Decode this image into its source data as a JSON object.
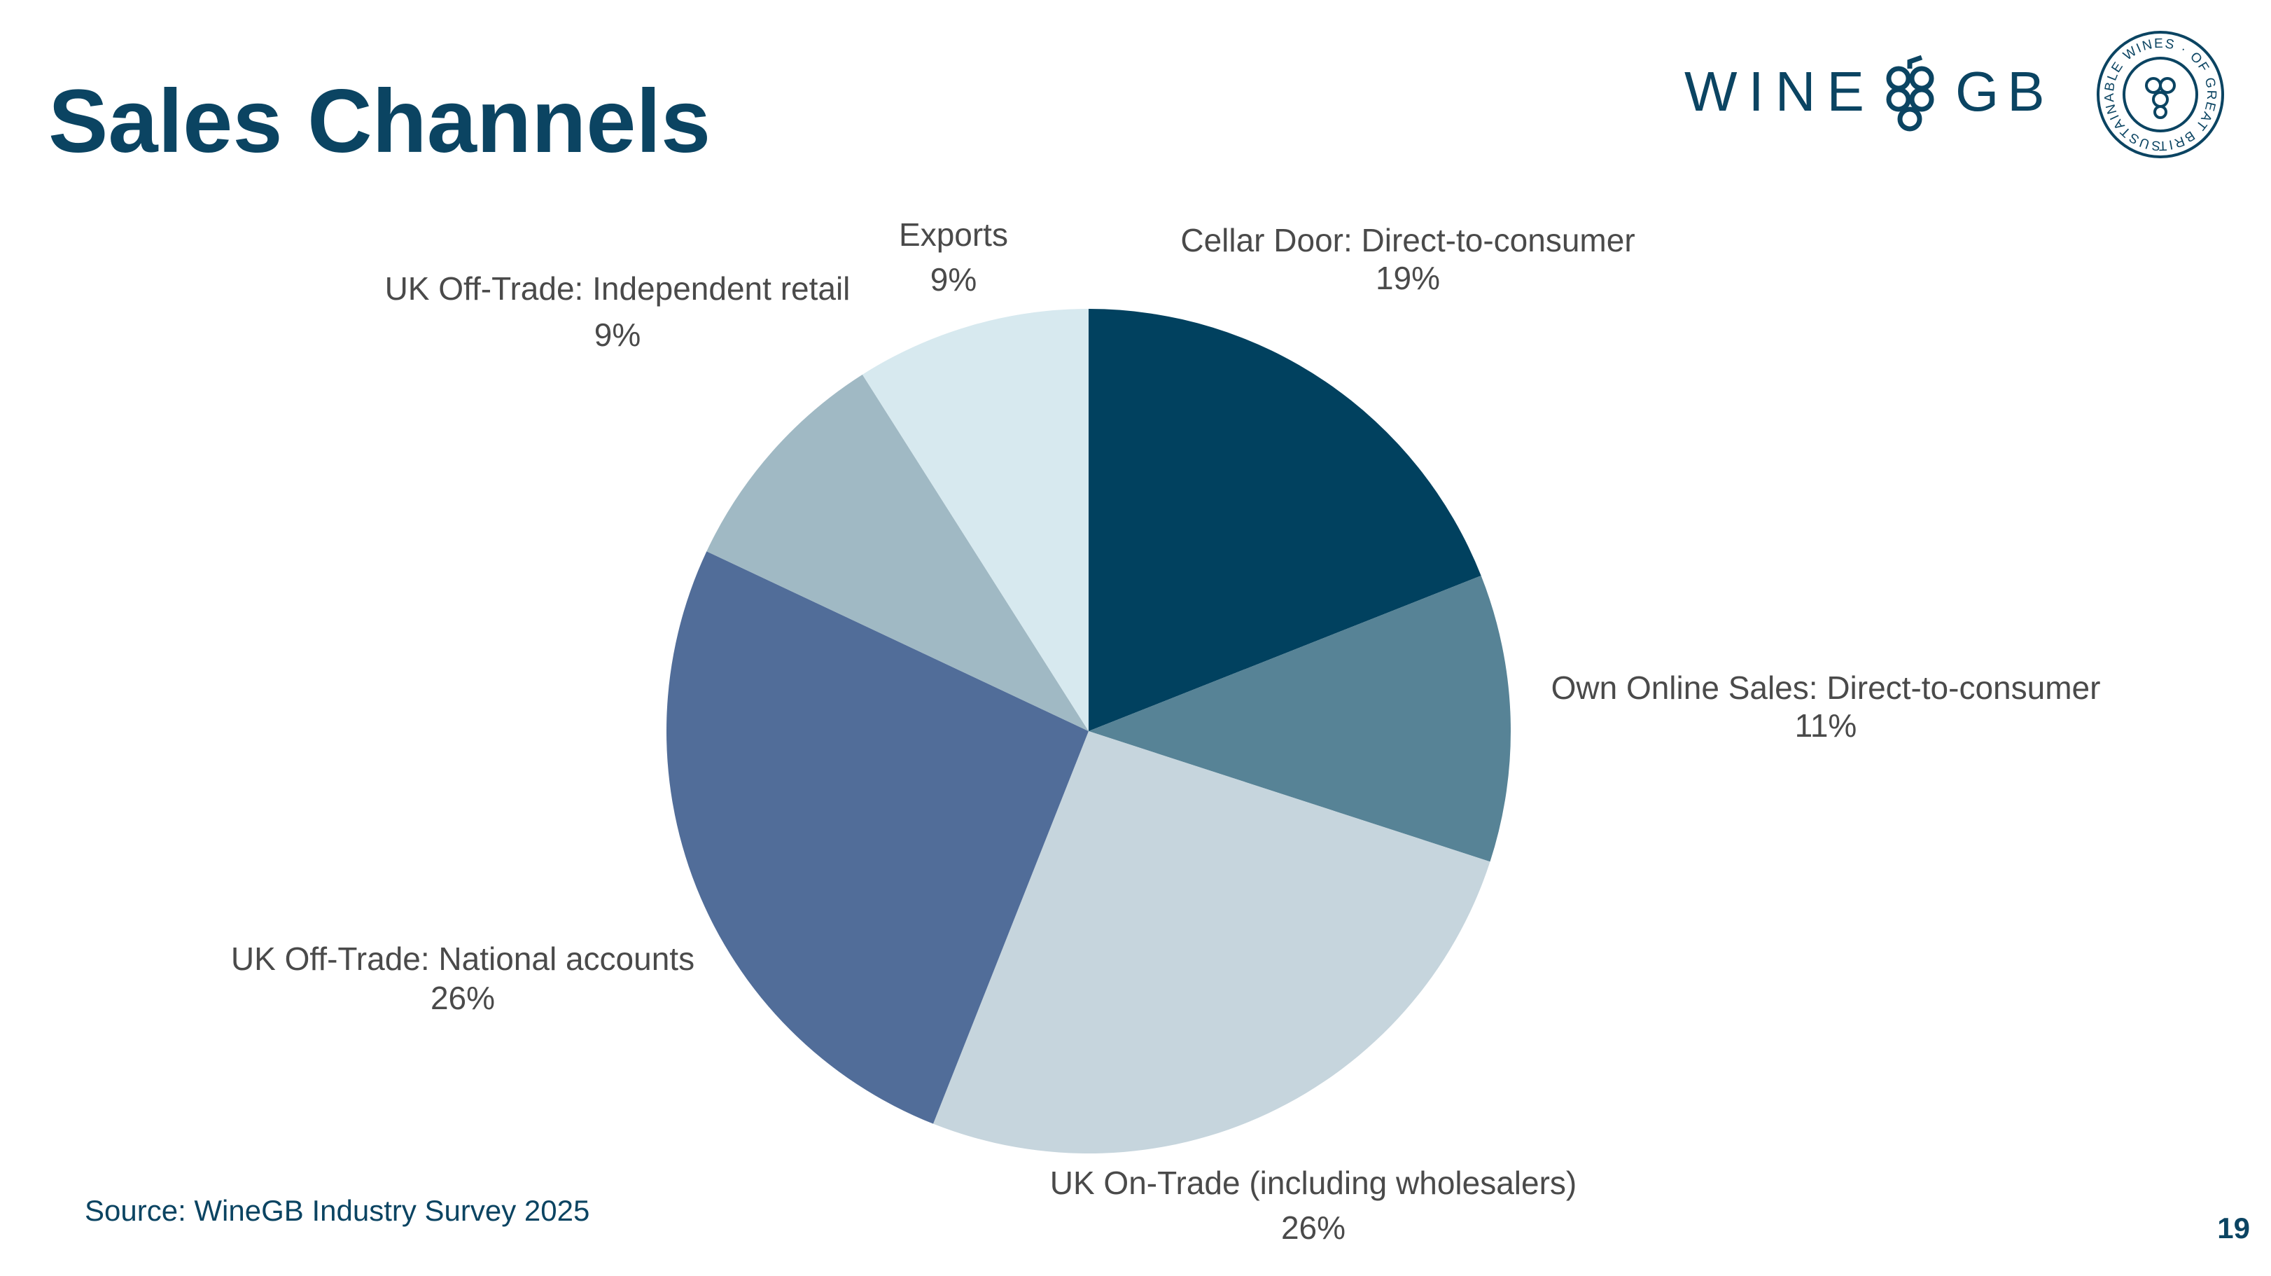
{
  "header": {
    "title": "Sales Channels",
    "brand_left": "WINE",
    "brand_right": "GB",
    "badge": "SUSTAINABLE WINES · OF GREAT BRITAIN ·"
  },
  "chart_data": {
    "type": "pie",
    "categories": [
      "Cellar Door: Direct-to-consumer",
      "Own Online Sales: Direct-to-consumer",
      "UK On-Trade (including wholesalers)",
      "UK Off-Trade: National accounts",
      "UK Off-Trade: Independent retail",
      "Exports"
    ],
    "values": [
      19,
      11,
      26,
      26,
      9,
      9
    ],
    "value_labels": [
      "19%",
      "11%",
      "26%",
      "26%",
      "9%",
      "9%"
    ],
    "colors": [
      "#01415f",
      "#578396",
      "#c6d5dd",
      "#516d99",
      "#a0b9c4",
      "#d7e9ef"
    ]
  },
  "footer": {
    "source": "Source: WineGB Industry Survey 2025",
    "page": "19"
  }
}
